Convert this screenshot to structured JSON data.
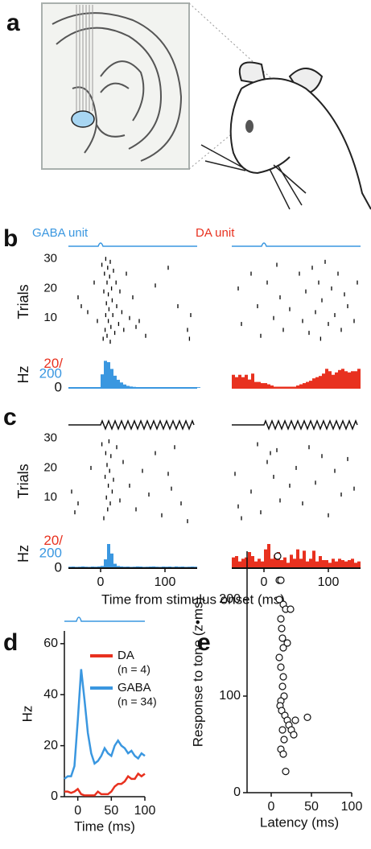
{
  "panel_labels": [
    "a",
    "b",
    "c",
    "d",
    "e"
  ],
  "chart_data": [
    {
      "type": "raster",
      "title": "GABA unit",
      "title_color": "#3a97e0",
      "color": "#000000",
      "ylabel": "Trials",
      "x": [
        -35,
        -30,
        -20,
        -10,
        -5,
        2,
        4,
        5,
        6,
        7,
        8,
        8,
        9,
        10,
        10,
        11,
        12,
        12,
        13,
        14,
        15,
        15,
        16,
        17,
        18,
        19,
        20,
        22,
        24,
        25,
        28,
        30,
        33,
        36,
        40,
        45,
        50,
        55,
        60,
        70,
        85,
        105,
        120,
        135,
        138,
        140
      ],
      "y": [
        17,
        14,
        12,
        22,
        9,
        28,
        3,
        19,
        25,
        6,
        11,
        30,
        15,
        22,
        4,
        27,
        9,
        18,
        13,
        24,
        2,
        29,
        7,
        20,
        16,
        11,
        26,
        5,
        22,
        14,
        8,
        19,
        12,
        6,
        25,
        10,
        17,
        7,
        9,
        4,
        21,
        27,
        14,
        6,
        3,
        11
      ],
      "xlim": [
        -50,
        150
      ],
      "ylim": [
        0,
        31
      ],
      "yticks": [
        10,
        20,
        30
      ]
    },
    {
      "type": "raster",
      "title": "DA unit",
      "title_color": "#e8311f",
      "color": "#000000",
      "x": [
        -40,
        -35,
        -20,
        -10,
        -5,
        5,
        15,
        20,
        25,
        30,
        40,
        55,
        60,
        65,
        70,
        75,
        80,
        85,
        88,
        90,
        95,
        100,
        105,
        110,
        115,
        120,
        125,
        130,
        140,
        145
      ],
      "y": [
        20,
        8,
        25,
        14,
        4,
        22,
        10,
        28,
        17,
        6,
        13,
        25,
        9,
        19,
        5,
        27,
        12,
        22,
        3,
        16,
        29,
        8,
        20,
        11,
        25,
        6,
        18,
        14,
        9,
        22
      ],
      "xlim": [
        -50,
        150
      ],
      "ylim": [
        0,
        31
      ]
    },
    {
      "type": "histogram",
      "color": "#3a97e0",
      "ylabel": "Hz",
      "bins": [
        -50,
        -45,
        -40,
        -35,
        -30,
        -25,
        -20,
        -15,
        -10,
        -5,
        0,
        5,
        10,
        15,
        20,
        25,
        30,
        35,
        40,
        45,
        50,
        55,
        60,
        65,
        70,
        75,
        80,
        85,
        90,
        95,
        100,
        105,
        110,
        115,
        120,
        125,
        130,
        140,
        145,
        150,
        155
      ],
      "values": [
        10,
        10,
        10,
        10,
        10,
        10,
        10,
        10,
        10,
        10,
        200,
        400,
        380,
        280,
        180,
        120,
        80,
        50,
        30,
        20,
        15,
        10,
        10,
        10,
        10,
        10,
        10,
        10,
        10,
        10,
        10,
        10,
        10,
        10,
        10,
        10,
        10,
        10,
        10,
        10
      ],
      "xlim": [
        -50,
        150
      ],
      "ylim": [
        0,
        440
      ],
      "yticks": [
        0,
        200
      ]
    },
    {
      "type": "histogram",
      "color": "#e8311f",
      "bins": [
        -50,
        -45,
        -40,
        -35,
        -30,
        -25,
        -20,
        -15,
        -10,
        -5,
        0,
        5,
        10,
        15,
        20,
        25,
        30,
        35,
        40,
        45,
        50,
        55,
        60,
        65,
        70,
        75,
        80,
        85,
        90,
        95,
        100,
        105,
        110,
        115,
        120,
        125,
        130,
        135,
        140,
        145,
        150
      ],
      "values": [
        11,
        9,
        11,
        9,
        11,
        7,
        12,
        5,
        5,
        4,
        4,
        3,
        2,
        1,
        1,
        1,
        1,
        1,
        1,
        1,
        2,
        3,
        4,
        5,
        6,
        8,
        9,
        10,
        12,
        16,
        14,
        11,
        13,
        15,
        16,
        14,
        13,
        14,
        14,
        16
      ],
      "xlim": [
        -50,
        150
      ],
      "ylim": [
        0,
        25
      ],
      "yticks": [
        {
          "value": 20,
          "label": "20/"
        }
      ]
    },
    {
      "type": "raster",
      "color": "#000000",
      "ylabel": "Trials",
      "x": [
        -45,
        -40,
        -35,
        -15,
        2,
        5,
        7,
        8,
        9,
        10,
        11,
        12,
        13,
        14,
        15,
        16,
        18,
        20,
        25,
        30,
        35,
        45,
        55,
        65,
        75,
        85,
        95,
        105,
        110,
        115,
        125,
        135
      ],
      "y": [
        12,
        5,
        8,
        20,
        28,
        3,
        17,
        25,
        10,
        21,
        6,
        14,
        29,
        19,
        8,
        24,
        12,
        16,
        27,
        9,
        22,
        14,
        6,
        19,
        11,
        25,
        4,
        18,
        13,
        27,
        8,
        2
      ],
      "xlim": [
        -50,
        150
      ],
      "ylim": [
        0,
        31
      ],
      "yticks": [
        10,
        20,
        30
      ]
    },
    {
      "type": "raster",
      "color": "#000000",
      "x": [
        -45,
        -40,
        -35,
        -20,
        -10,
        -5,
        5,
        10,
        15,
        20,
        25,
        40,
        50,
        60,
        70,
        80,
        90,
        100,
        110,
        120,
        130,
        140
      ],
      "y": [
        18,
        7,
        3,
        12,
        28,
        5,
        22,
        25,
        17,
        26,
        9,
        14,
        20,
        8,
        27,
        15,
        24,
        4,
        19,
        11,
        23,
        13
      ],
      "xlim": [
        -50,
        150
      ],
      "ylim": [
        0,
        31
      ]
    },
    {
      "type": "histogram",
      "color": "#3a97e0",
      "ylabel": "Hz",
      "xlabel": "Time from stimulus onset (ms)",
      "bins": [
        -50,
        -45,
        -40,
        -35,
        -30,
        -25,
        -20,
        -15,
        -10,
        -5,
        0,
        5,
        10,
        15,
        20,
        25,
        30,
        35,
        40,
        45,
        50,
        55,
        60,
        65,
        70,
        75,
        80,
        85,
        90,
        95,
        100,
        105,
        110,
        115,
        120,
        125,
        130,
        135,
        140,
        145,
        150
      ],
      "values": [
        20,
        22,
        18,
        20,
        24,
        20,
        18,
        22,
        20,
        24,
        30,
        120,
        330,
        200,
        60,
        30,
        24,
        20,
        22,
        18,
        20,
        24,
        22,
        18,
        20,
        22,
        24,
        20,
        18,
        22,
        20,
        22,
        18,
        24,
        20,
        22,
        18,
        20,
        22,
        20
      ],
      "xlim": [
        -50,
        150
      ],
      "ylim": [
        0,
        440
      ],
      "yticks": [
        0,
        200
      ],
      "xticks": [
        0,
        100
      ]
    },
    {
      "type": "histogram",
      "color": "#e8311f",
      "bins": [
        -50,
        -45,
        -40,
        -35,
        -30,
        -25,
        -20,
        -15,
        -10,
        -5,
        0,
        5,
        10,
        15,
        20,
        25,
        30,
        35,
        40,
        45,
        50,
        55,
        60,
        65,
        70,
        75,
        80,
        85,
        90,
        95,
        100,
        105,
        110,
        115,
        120,
        125,
        130,
        135,
        140,
        145,
        150
      ],
      "values": [
        8,
        9,
        5,
        7,
        8,
        12,
        9,
        5,
        7,
        5,
        14,
        18,
        7,
        10,
        12,
        6,
        8,
        4,
        10,
        7,
        14,
        7,
        13,
        5,
        7,
        13,
        5,
        9,
        6,
        6,
        4,
        7,
        5,
        7,
        6,
        5,
        6,
        7,
        4,
        5
      ],
      "xlim": [
        -50,
        150
      ],
      "ylim": [
        0,
        24
      ],
      "yticks": [
        {
          "value": 20,
          "label": "20/"
        }
      ],
      "xticks": [
        0,
        100
      ]
    },
    {
      "type": "line",
      "ylabel": "Hz",
      "xlabel": "Time (ms)",
      "x": [
        -20,
        -15,
        -10,
        -5,
        0,
        5,
        10,
        15,
        20,
        25,
        30,
        35,
        40,
        45,
        50,
        55,
        60,
        65,
        70,
        75,
        80,
        85,
        90,
        95,
        100
      ],
      "series": [
        {
          "name": "DA",
          "note": "(n = 4)",
          "color": "#e8311f",
          "values": [
            2,
            2,
            1.5,
            2,
            3,
            1,
            0.5,
            0.5,
            0.5,
            0.5,
            2,
            1,
            1,
            1,
            2,
            4,
            5,
            5,
            6,
            8,
            7,
            7,
            9,
            8,
            9
          ]
        },
        {
          "name": "GABA",
          "note": "(n = 34)",
          "color": "#3a97e0",
          "values": [
            7,
            8,
            8,
            12,
            30,
            50,
            38,
            25,
            17,
            13,
            14,
            16,
            19,
            17,
            16,
            20,
            22,
            20,
            19,
            17,
            18,
            16,
            15,
            17,
            16
          ]
        }
      ],
      "xlim": [
        -20,
        100
      ],
      "ylim": [
        0,
        65
      ],
      "xticks": [
        0,
        50,
        100
      ],
      "yticks": [
        0,
        20,
        40,
        60
      ]
    },
    {
      "type": "scatter",
      "ylabel": "Response to tone (z•ms)",
      "xlabel": "Latency (ms)",
      "x": [
        8,
        10,
        12,
        15,
        10,
        12,
        13,
        14,
        15,
        10,
        12,
        15,
        14,
        16,
        12,
        11,
        13,
        17,
        20,
        22,
        25,
        28,
        30,
        18,
        14,
        16,
        45,
        20,
        12,
        15,
        18,
        24
      ],
      "y": [
        245,
        220,
        220,
        195,
        200,
        180,
        170,
        160,
        150,
        140,
        130,
        120,
        110,
        100,
        95,
        90,
        85,
        80,
        75,
        70,
        65,
        60,
        75,
        190,
        65,
        55,
        78,
        155,
        45,
        40,
        22,
        190
      ],
      "xlim": [
        -30,
        100
      ],
      "ylim": [
        0,
        250
      ],
      "xticks": [
        0,
        50,
        100
      ],
      "yticks": [
        0,
        100,
        200
      ]
    }
  ]
}
